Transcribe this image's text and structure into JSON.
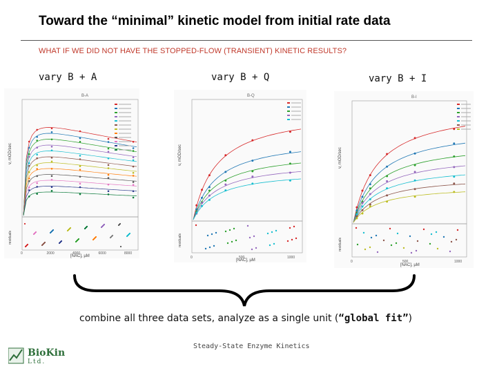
{
  "title": "Toward the “minimal” kinetic model from initial rate data",
  "subtitle": "WHAT IF WE DID NOT HAVE THE STOPPED-FLOW (TRANSIENT) KINETIC RESULTS?",
  "panels": [
    {
      "label": "vary B + A",
      "plot_title": "B-A",
      "x_axis_label": "[NAC], µM",
      "y_axis_label": "v, mOD/sec",
      "residual_axis_label": "residuals",
      "x_ticks": [
        "0",
        "2000",
        "4000",
        "6000",
        "8000"
      ]
    },
    {
      "label": "vary B + Q",
      "plot_title": "B-Q",
      "x_axis_label": "[NAC], µM",
      "y_axis_label": "v, mOD/sec",
      "residual_axis_label": "residuals",
      "x_ticks": [
        "0",
        "500",
        "1000"
      ]
    },
    {
      "label": "vary B + I",
      "plot_title": "B-I",
      "x_axis_label": "[NAC], µM",
      "y_axis_label": "v, mOD/sec",
      "residual_axis_label": "residuals",
      "x_ticks": [
        "0",
        "500",
        "1000"
      ]
    }
  ],
  "caption": {
    "text": "combine all three data sets, analyze as a single unit (",
    "quoted": "“global fit”",
    "close": ")"
  },
  "footer": "Steady-State Enzyme Kinetics",
  "logo": {
    "name": "BioKin",
    "sub": "Ltd."
  },
  "colors": {
    "series": [
      "#d62728",
      "#1f77b4",
      "#2ca02c",
      "#9467bd",
      "#17becf",
      "#8c564b",
      "#bcbd22",
      "#ff7f0e",
      "#555555",
      "#e377c2",
      "#2b3a8c",
      "#0a7a3a",
      "#7f7f7f"
    ]
  }
}
